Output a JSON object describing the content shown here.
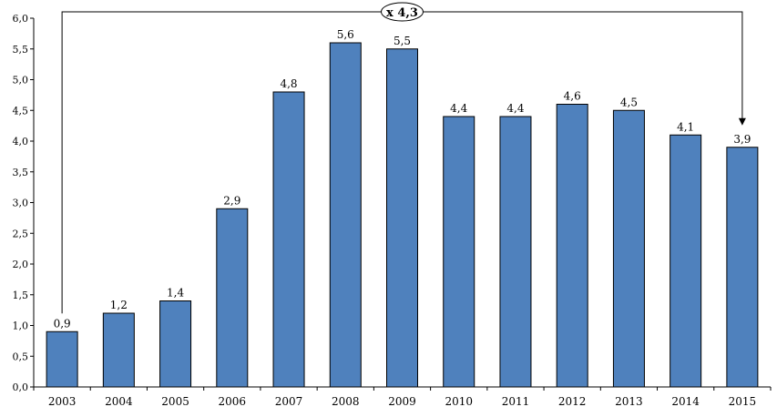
{
  "chart_data": {
    "type": "bar",
    "title": "",
    "xlabel": "",
    "ylabel": "",
    "categories": [
      "2003",
      "2004",
      "2005",
      "2006",
      "2007",
      "2008",
      "2009",
      "2010",
      "2011",
      "2012",
      "2013",
      "2014",
      "2015"
    ],
    "values": [
      0.9,
      1.2,
      1.4,
      2.9,
      4.8,
      5.6,
      5.5,
      4.4,
      4.4,
      4.6,
      4.5,
      4.1,
      3.9
    ],
    "data_labels": [
      "0,9",
      "1,2",
      "1,4",
      "2,9",
      "4,8",
      "5,6",
      "5,5",
      "4,4",
      "4,4",
      "4,6",
      "4,5",
      "4,1",
      "3,9"
    ],
    "ylim": [
      0,
      6.0
    ],
    "yticks": [
      "0,0",
      "0,5",
      "1,0",
      "1,5",
      "2,0",
      "2,5",
      "3,0",
      "3,5",
      "4,0",
      "4,5",
      "5,0",
      "5,5",
      "6,0"
    ],
    "grid": false,
    "legend": "none",
    "bar_color": "#4f81bd",
    "bar_edge_color": "#000000",
    "annotation": {
      "text": "x 4,3",
      "from_category": "2003",
      "to_category": "2015"
    }
  }
}
